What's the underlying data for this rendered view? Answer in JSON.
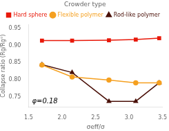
{
  "chart_data": {
    "type": "line",
    "xlabel": "σeff/σ",
    "ylabel": "Collapse ratio (Rg/Rg⁰)",
    "annotation": "φ=0.18",
    "legend_title": "Crowder type",
    "legend": "upper right",
    "grid": false,
    "xlim": [
      1.5,
      3.5
    ],
    "ylim": [
      0.72,
      0.96
    ],
    "xticks": [
      1.5,
      {
        "value": 2.0,
        "label": "2.0"
      },
      2.5,
      {
        "value": 3.0,
        "label": "3.0"
      },
      3.5
    ],
    "yticks": [
      0.75,
      {
        "value": 0.8,
        "label": "0.80"
      },
      0.85,
      {
        "value": 0.9,
        "label": "0.90"
      },
      0.95
    ],
    "x": [
      1.7,
      2.15,
      2.7,
      3.1,
      3.45
    ],
    "series": [
      {
        "name": "Hard sphere",
        "color": "#e8190a",
        "marker": "s",
        "values": [
          0.914,
          0.914,
          0.915,
          0.917,
          0.921
        ]
      },
      {
        "name": "Flexible polymer",
        "color": "#f5a020",
        "marker": "o",
        "values": [
          0.843,
          0.808,
          0.799,
          0.791,
          0.791
        ]
      },
      {
        "name": "Rod-like polymer",
        "color": "#4a1008",
        "marker": "^",
        "values": [
          0.844,
          0.821,
          0.737,
          0.737,
          0.791
        ]
      }
    ]
  }
}
